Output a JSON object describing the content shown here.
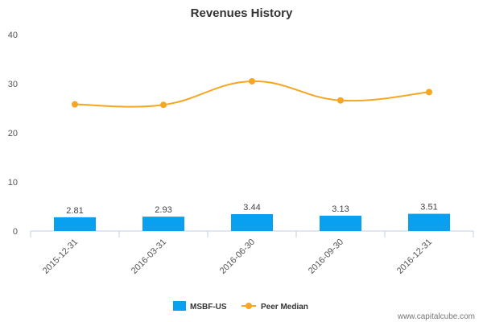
{
  "chart_data": {
    "type": "bar",
    "title": "Revenues History",
    "categories": [
      "2015-12-31",
      "2016-03-31",
      "2016-06-30",
      "2016-09-30",
      "2016-12-31"
    ],
    "series": [
      {
        "name": "MSBF-US",
        "type": "bar",
        "values": [
          2.81,
          2.93,
          3.44,
          3.13,
          3.51
        ],
        "color": "#0aa0f0",
        "data_labels": [
          "2.81",
          "2.93",
          "3.44",
          "3.13",
          "3.51"
        ]
      },
      {
        "name": "Peer Median",
        "type": "line",
        "values": [
          25.8,
          25.7,
          30.5,
          26.6,
          28.3
        ],
        "color": "#f5a623"
      }
    ],
    "ylim": [
      0,
      40
    ],
    "yticks": [
      "0",
      "10",
      "20",
      "30",
      "40"
    ],
    "grid": false,
    "legend": "bottom-center"
  },
  "watermark": "www.capitalcube.com"
}
